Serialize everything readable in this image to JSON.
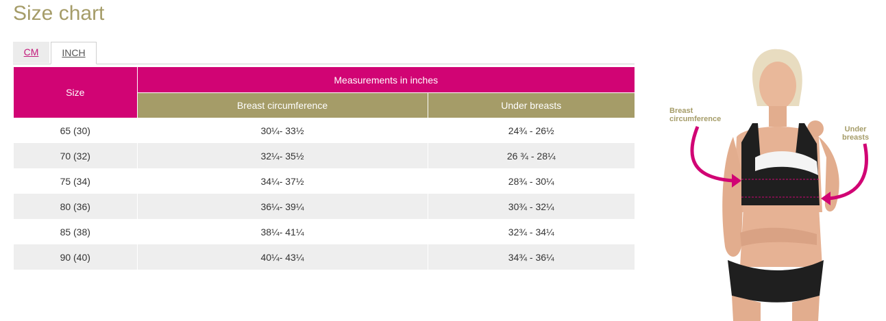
{
  "page": {
    "title": "Size chart"
  },
  "tabs": [
    {
      "label": "CM",
      "active": false
    },
    {
      "label": "INCH",
      "active": true
    }
  ],
  "table": {
    "size_header": "Size",
    "group_header": "Measurements in inches",
    "columns": [
      "Breast circumference",
      "Under breasts"
    ],
    "rows": [
      {
        "size": "65 (30)",
        "breast": "30¼- 33½",
        "under": "24¾ - 26½"
      },
      {
        "size": "70 (32)",
        "breast": "32¼- 35½",
        "under": "26 ¾ - 28¼"
      },
      {
        "size": "75 (34)",
        "breast": "34¼- 37½",
        "under": "28¾ - 30¼"
      },
      {
        "size": "80 (36)",
        "breast": "36¼- 39¼",
        "under": "30¾ - 32¼"
      },
      {
        "size": "85 (38)",
        "breast": "38¼- 41¼",
        "under": "32¾ - 34¼"
      },
      {
        "size": "90 (40)",
        "breast": "40¼- 43¼",
        "under": "34¾ - 36¼"
      }
    ]
  },
  "figure": {
    "label_breast": "Breast\ncircumference",
    "label_under": "Under\nbreasts"
  },
  "colors": {
    "title": "#a59c68",
    "pink": "#d10474",
    "olive": "#a59c68",
    "stripe": "#eeeeee",
    "tab_link": "#c2177a"
  }
}
